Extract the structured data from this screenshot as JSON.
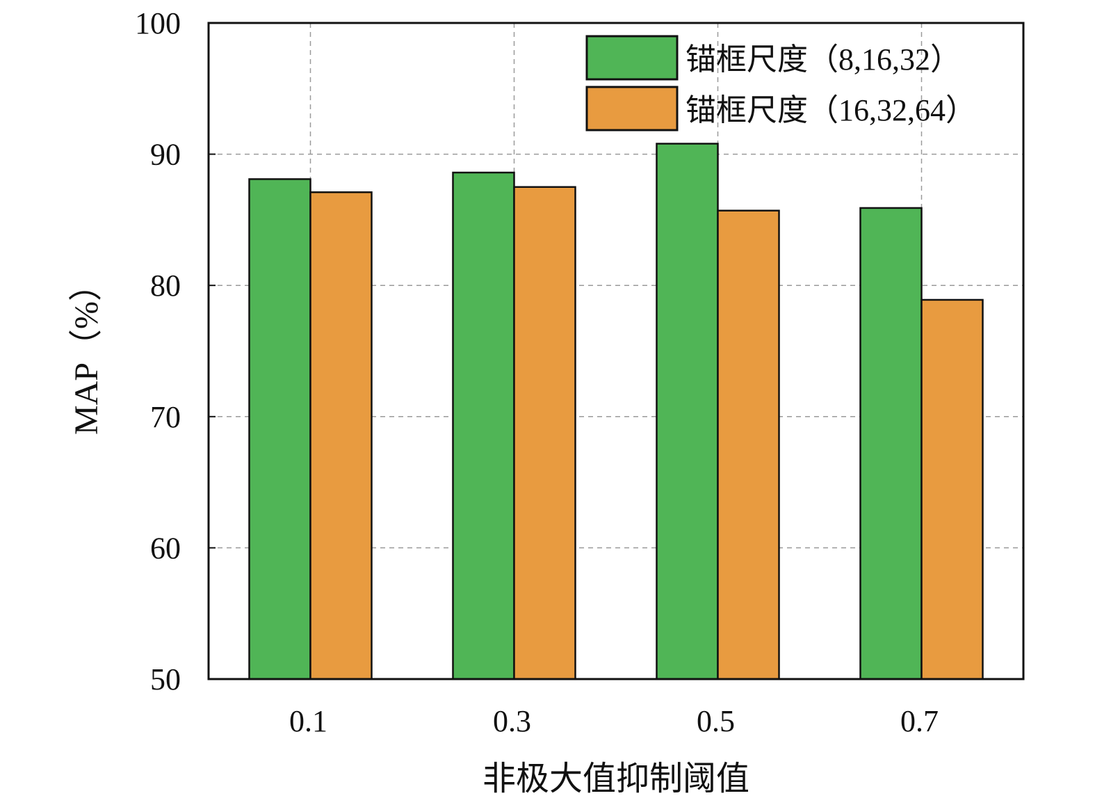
{
  "chart_data": {
    "type": "bar",
    "xlabel": "非极大值抑制阈值",
    "ylabel": "MAP（%）",
    "categories": [
      "0.1",
      "0.3",
      "0.5",
      "0.7"
    ],
    "ylim": [
      50,
      100
    ],
    "yticks": [
      "50",
      "60",
      "70",
      "80",
      "90",
      "100"
    ],
    "grid": true,
    "grid_style": "dashed",
    "legend_position": "top-right",
    "series": [
      {
        "name": "锚框尺度（8,16,32）",
        "color": "#50b556",
        "values": [
          88.1,
          88.6,
          90.8,
          85.9
        ]
      },
      {
        "name": "锚框尺度（16,32,64）",
        "color": "#e89b40",
        "values": [
          87.1,
          87.5,
          85.7,
          78.9
        ]
      }
    ]
  }
}
